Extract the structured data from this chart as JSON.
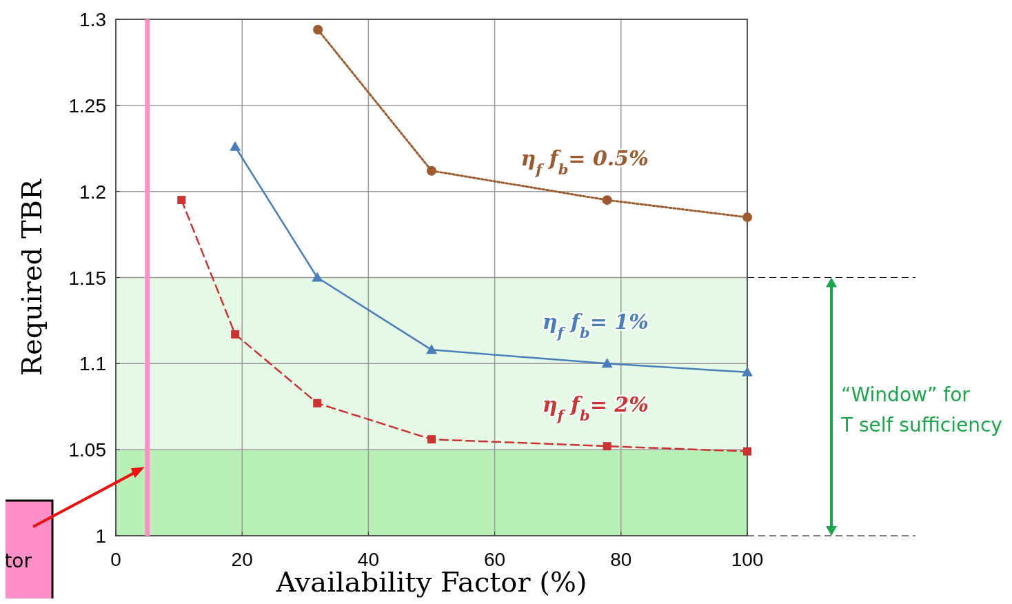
{
  "chart_data": {
    "type": "line",
    "xlabel": "Availability Factor (%)",
    "ylabel": "Required TBR",
    "xlim": [
      0,
      100
    ],
    "xticks": [
      0,
      20,
      40,
      60,
      80,
      100
    ],
    "ylim": [
      1,
      1.3
    ],
    "yticks": [
      1,
      1.05,
      1.1,
      1.15,
      1.2,
      1.25,
      1.3
    ],
    "grid": true,
    "series": [
      {
        "name": "η$_{f}$ f$_{b}$= 0.5%",
        "color": "#9c5a2e",
        "marker": "circle",
        "line_style": "dotted",
        "x": [
          32,
          50,
          77.8,
          100
        ],
        "values": [
          1.294,
          1.212,
          1.195,
          1.185
        ]
      },
      {
        "name": "η$_{f}$ f$_{b}$= 1%",
        "color": "#4a7ebb",
        "marker": "triangle",
        "line_style": "solid",
        "x": [
          18.9,
          31.9,
          50,
          77.8,
          100
        ],
        "values": [
          1.226,
          1.15,
          1.108,
          1.1,
          1.095
        ]
      },
      {
        "name": "η$_{f}$ f$_{b}$= 2%",
        "color": "#cc3333",
        "marker": "square",
        "line_style": "dashed",
        "x": [
          10.4,
          18.9,
          31.9,
          50,
          77.8,
          100
        ],
        "values": [
          1.195,
          1.117,
          1.077,
          1.056,
          1.052,
          1.049
        ]
      }
    ],
    "annotations": [
      "“Window” for T self sufficiency",
      "tor"
    ],
    "bands": [
      {
        "axis": "y",
        "from": 1,
        "to": 1.15,
        "color": "#e6f9e6"
      },
      {
        "axis": "y",
        "from": 1,
        "to": 1.05,
        "color": "#b8f0b8"
      }
    ],
    "ref_lines": [
      {
        "axis": "x",
        "value": 5,
        "color": "#ff8fc8"
      }
    ]
  }
}
